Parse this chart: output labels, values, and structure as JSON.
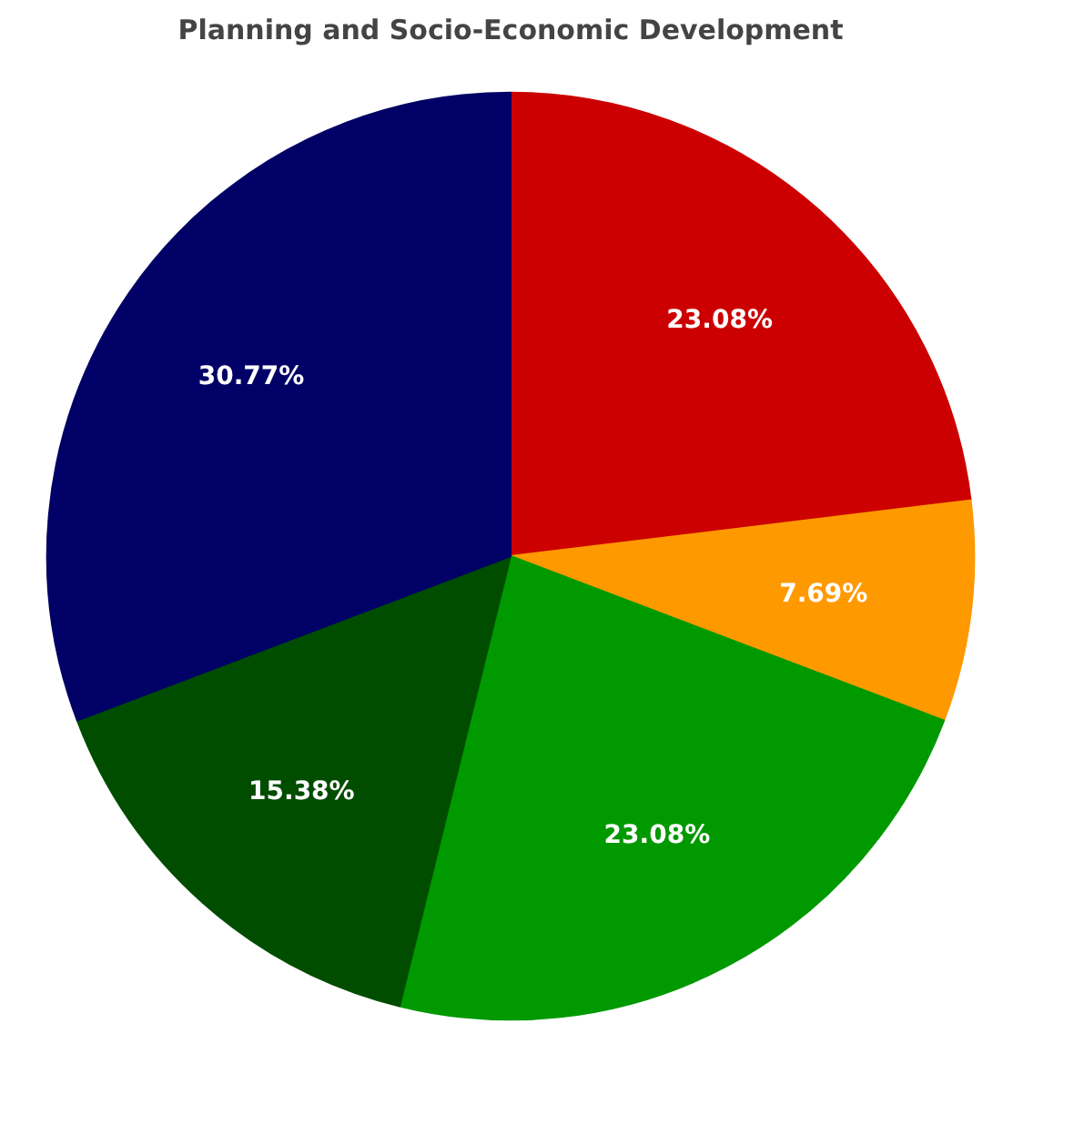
{
  "chart_data": {
    "type": "pie",
    "title": "Planning and Socio-Economic Development",
    "categories": [
      null,
      null,
      null,
      null,
      null
    ],
    "values": [
      23.08,
      7.69,
      23.08,
      15.38,
      30.77
    ],
    "colors": [
      "#cc0000",
      "#ff9900",
      "#009900",
      "#004d00",
      "#000066"
    ],
    "value_labels": [
      "23.08%",
      "7.69%",
      "23.08%",
      "15.38%",
      "30.77%"
    ]
  }
}
